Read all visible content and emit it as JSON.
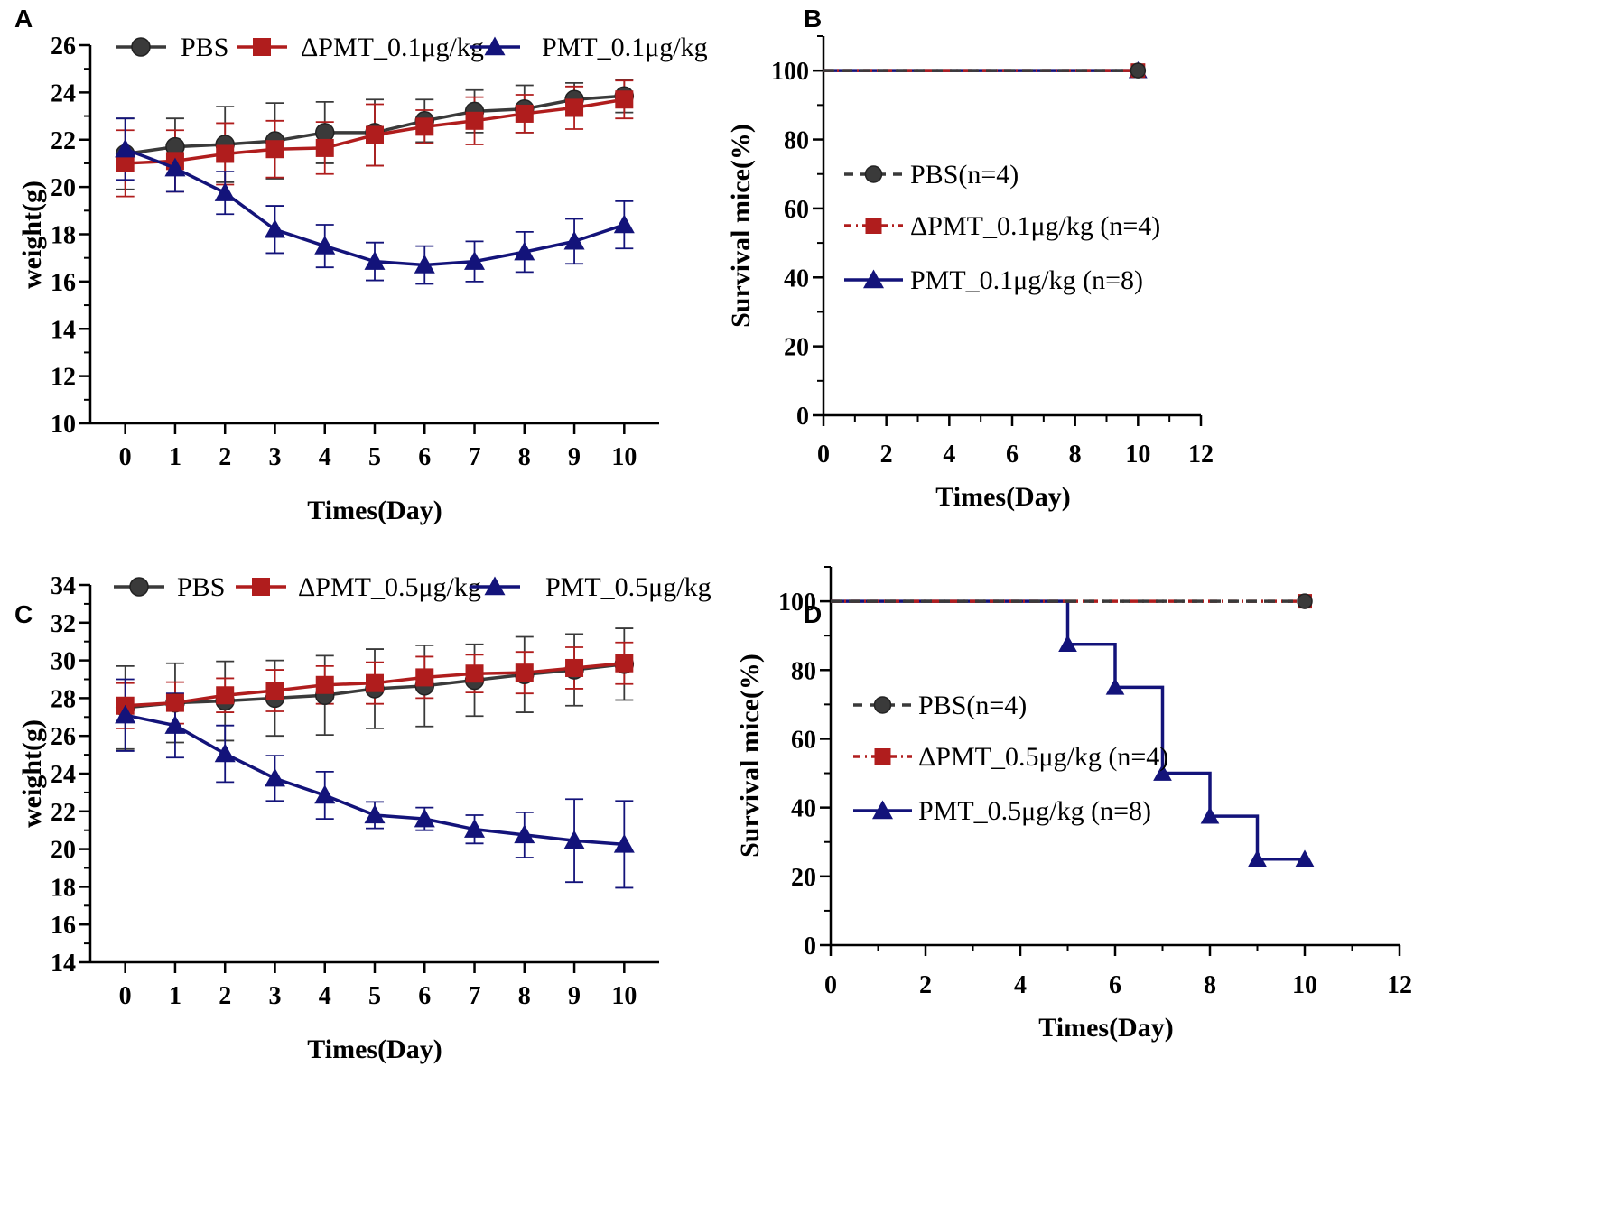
{
  "colors": {
    "pbs": "#3a3a3a",
    "dpmt": "#b01d1d",
    "pmt": "#13137a",
    "axis": "#000000"
  },
  "chart_data": [
    {
      "panel": "A",
      "type": "line",
      "xlabel": "Times(Day)",
      "ylabel": "weight(g)",
      "xlim": [
        -0.7,
        10.7
      ],
      "ylim": [
        10,
        26
      ],
      "xticks": [
        "0",
        "1",
        "2",
        "3",
        "4",
        "5",
        "6",
        "7",
        "8",
        "9",
        "10"
      ],
      "yticks": [
        "10",
        "12",
        "14",
        "16",
        "18",
        "20",
        "22",
        "24",
        "26"
      ],
      "legend": [
        "PBS",
        "ΔPMT_0.1μg/kg",
        "PMT_0.1μg/kg"
      ],
      "x": [
        0,
        1,
        2,
        3,
        4,
        5,
        6,
        7,
        8,
        9,
        10
      ],
      "series": [
        {
          "name": "PBS",
          "marker": "circle",
          "values": [
            21.4,
            21.7,
            21.8,
            21.95,
            22.3,
            22.3,
            22.8,
            23.2,
            23.3,
            23.7,
            23.85
          ],
          "err": [
            1.5,
            1.2,
            1.6,
            1.6,
            1.3,
            1.4,
            0.9,
            0.9,
            1.0,
            0.7,
            0.7
          ]
        },
        {
          "name": "ΔPMT_0.1μg/kg",
          "marker": "square",
          "values": [
            21.0,
            21.1,
            21.4,
            21.6,
            21.65,
            22.2,
            22.55,
            22.8,
            23.1,
            23.35,
            23.7
          ],
          "err": [
            1.4,
            1.3,
            1.3,
            1.2,
            1.1,
            1.3,
            0.7,
            1.0,
            0.8,
            0.9,
            0.8
          ]
        },
        {
          "name": "PMT_0.1μg/kg",
          "marker": "triangle",
          "values": [
            21.6,
            20.8,
            19.75,
            18.2,
            17.5,
            16.85,
            16.7,
            16.85,
            17.25,
            17.7,
            18.4
          ],
          "err": [
            1.3,
            1.0,
            0.9,
            1.0,
            0.9,
            0.8,
            0.8,
            0.85,
            0.85,
            0.95,
            1.0
          ]
        }
      ]
    },
    {
      "panel": "B",
      "type": "line",
      "xlabel": "Times(Day)",
      "ylabel": "Survival mice(%)",
      "xlim": [
        0,
        12
      ],
      "ylim": [
        0,
        110
      ],
      "xticks": [
        "0",
        "2",
        "4",
        "6",
        "8",
        "10",
        "12"
      ],
      "yticks": [
        "0",
        "20",
        "40",
        "60",
        "80",
        "100"
      ],
      "legend": [
        "PBS(n=4)",
        "ΔPMT_0.1μg/kg (n=4)",
        "PMT_0.1μg/kg (n=8)"
      ],
      "series": [
        {
          "name": "PBS(n=4)",
          "marker": "circle",
          "x": [
            0,
            10
          ],
          "values": [
            100,
            100
          ]
        },
        {
          "name": "ΔPMT_0.1μg/kg (n=4)",
          "marker": "square",
          "x": [
            0,
            10
          ],
          "values": [
            100,
            100
          ]
        },
        {
          "name": "PMT_0.1μg/kg (n=8)",
          "marker": "triangle",
          "x": [
            0,
            10
          ],
          "values": [
            100,
            100
          ]
        }
      ]
    },
    {
      "panel": "C",
      "type": "line",
      "xlabel": "Times(Day)",
      "ylabel": "weight(g)",
      "xlim": [
        -0.7,
        10.7
      ],
      "ylim": [
        14,
        34
      ],
      "xticks": [
        "0",
        "1",
        "2",
        "3",
        "4",
        "5",
        "6",
        "7",
        "8",
        "9",
        "10"
      ],
      "yticks": [
        "14",
        "16",
        "18",
        "20",
        "22",
        "24",
        "26",
        "28",
        "30",
        "32",
        "34"
      ],
      "legend": [
        "PBS",
        "ΔPMT_0.5μg/kg",
        "PMT_0.5μg/kg"
      ],
      "x": [
        0,
        1,
        2,
        3,
        4,
        5,
        6,
        7,
        8,
        9,
        10
      ],
      "series": [
        {
          "name": "PBS",
          "marker": "circle",
          "values": [
            27.5,
            27.75,
            27.85,
            28.0,
            28.15,
            28.5,
            28.65,
            28.95,
            29.25,
            29.5,
            29.8
          ],
          "err": [
            2.2,
            2.1,
            2.1,
            2.0,
            2.1,
            2.1,
            2.15,
            1.9,
            2.0,
            1.9,
            1.9
          ]
        },
        {
          "name": "ΔPMT_0.5μg/kg",
          "marker": "square",
          "values": [
            27.6,
            27.75,
            28.15,
            28.4,
            28.7,
            28.8,
            29.1,
            29.3,
            29.35,
            29.6,
            29.85
          ],
          "err": [
            1.2,
            1.1,
            0.9,
            1.1,
            1.0,
            1.1,
            1.1,
            1.0,
            1.1,
            1.1,
            1.1
          ]
        },
        {
          "name": "PMT_0.5μg/kg",
          "marker": "triangle",
          "values": [
            27.1,
            26.55,
            25.05,
            23.75,
            22.85,
            21.8,
            21.6,
            21.05,
            20.75,
            20.45,
            20.25
          ],
          "err": [
            1.9,
            1.7,
            1.5,
            1.2,
            1.25,
            0.7,
            0.6,
            0.75,
            1.2,
            2.2,
            2.3
          ]
        }
      ]
    },
    {
      "panel": "D",
      "type": "line",
      "xlabel": "Times(Day)",
      "ylabel": "Survival mice(%)",
      "xlim": [
        0,
        12
      ],
      "ylim": [
        0,
        110
      ],
      "xticks": [
        "0",
        "2",
        "4",
        "6",
        "8",
        "10",
        "12"
      ],
      "yticks": [
        "0",
        "20",
        "40",
        "60",
        "80",
        "100"
      ],
      "legend": [
        "PBS(n=4)",
        "ΔPMT_0.5μg/kg (n=4)",
        "PMT_0.5μg/kg (n=8)"
      ],
      "series": [
        {
          "name": "PBS(n=4)",
          "marker": "circle",
          "x": [
            0,
            10
          ],
          "values": [
            100,
            100
          ]
        },
        {
          "name": "ΔPMT_0.5μg/kg (n=4)",
          "marker": "square",
          "x": [
            0,
            10
          ],
          "values": [
            100,
            100
          ]
        },
        {
          "name": "PMT_0.5μg/kg (n=8)",
          "marker": "triangle",
          "x": [
            0,
            5,
            6,
            7,
            8,
            9,
            10
          ],
          "values": [
            100,
            87.5,
            75,
            50,
            37.5,
            25,
            25
          ]
        }
      ]
    }
  ]
}
